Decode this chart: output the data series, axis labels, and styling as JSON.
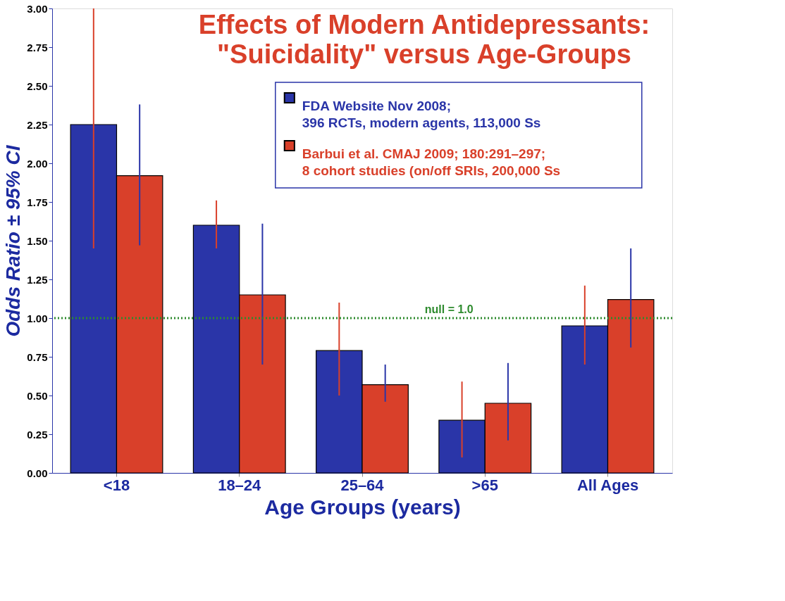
{
  "chart_data": {
    "type": "bar",
    "title": "Effects of Modern Antidepressants:\n\"Suicidality\" versus Age-Groups",
    "xlabel": "Age Groups (years)",
    "ylabel": "Odds Ratio ± 95% CI",
    "categories": [
      "<18",
      "18–24",
      "25–64",
      ">65",
      "All Ages"
    ],
    "series": [
      {
        "name": "FDA Website Nov 2008;\n396 RCTs, modern agents, 113,000 Ss",
        "color": "#2a35a8",
        "values": [
          2.25,
          1.6,
          0.79,
          0.34,
          0.95
        ],
        "errors": [
          [
            1.45,
            3.0
          ],
          [
            1.45,
            1.76
          ],
          [
            0.5,
            1.1
          ],
          [
            0.1,
            0.59
          ],
          [
            0.7,
            1.21
          ]
        ]
      },
      {
        "name": "Barbui et al. CMAJ 2009; 180:291–297;\n8 cohort studies (on/off SRIs, 200,000 Ss",
        "color": "#d9402a",
        "values": [
          1.92,
          1.15,
          0.57,
          0.45,
          1.12
        ],
        "errors": [
          [
            1.47,
            2.38
          ],
          [
            0.7,
            1.61
          ],
          [
            0.46,
            0.7
          ],
          [
            0.21,
            0.71
          ],
          [
            0.81,
            1.45
          ]
        ]
      }
    ],
    "ylim": [
      0,
      3
    ],
    "yticks": [
      {
        "value": 0,
        "label": "0.00"
      },
      {
        "value": 0.25,
        "label": "0.25"
      },
      {
        "value": 0.5,
        "label": "0.50"
      },
      {
        "value": 0.75,
        "label": "0.75"
      },
      {
        "value": 1,
        "label": "1.00"
      },
      {
        "value": 1.25,
        "label": "1.25"
      },
      {
        "value": 1.5,
        "label": "1.50"
      },
      {
        "value": 1.75,
        "label": "1.75"
      },
      {
        "value": 2,
        "label": "2.00"
      },
      {
        "value": 2.25,
        "label": "2.25"
      },
      {
        "value": 2.5,
        "label": "2.50"
      },
      {
        "value": 2.75,
        "label": "2.75"
      },
      {
        "value": 3,
        "label": "3.00"
      }
    ],
    "ref_lines": [
      {
        "axis": "y",
        "value": 1.0,
        "label": "null = 1.0",
        "color": "#2e8b2e",
        "line_style": "dotted"
      }
    ],
    "legend": "top right",
    "grid": false
  }
}
